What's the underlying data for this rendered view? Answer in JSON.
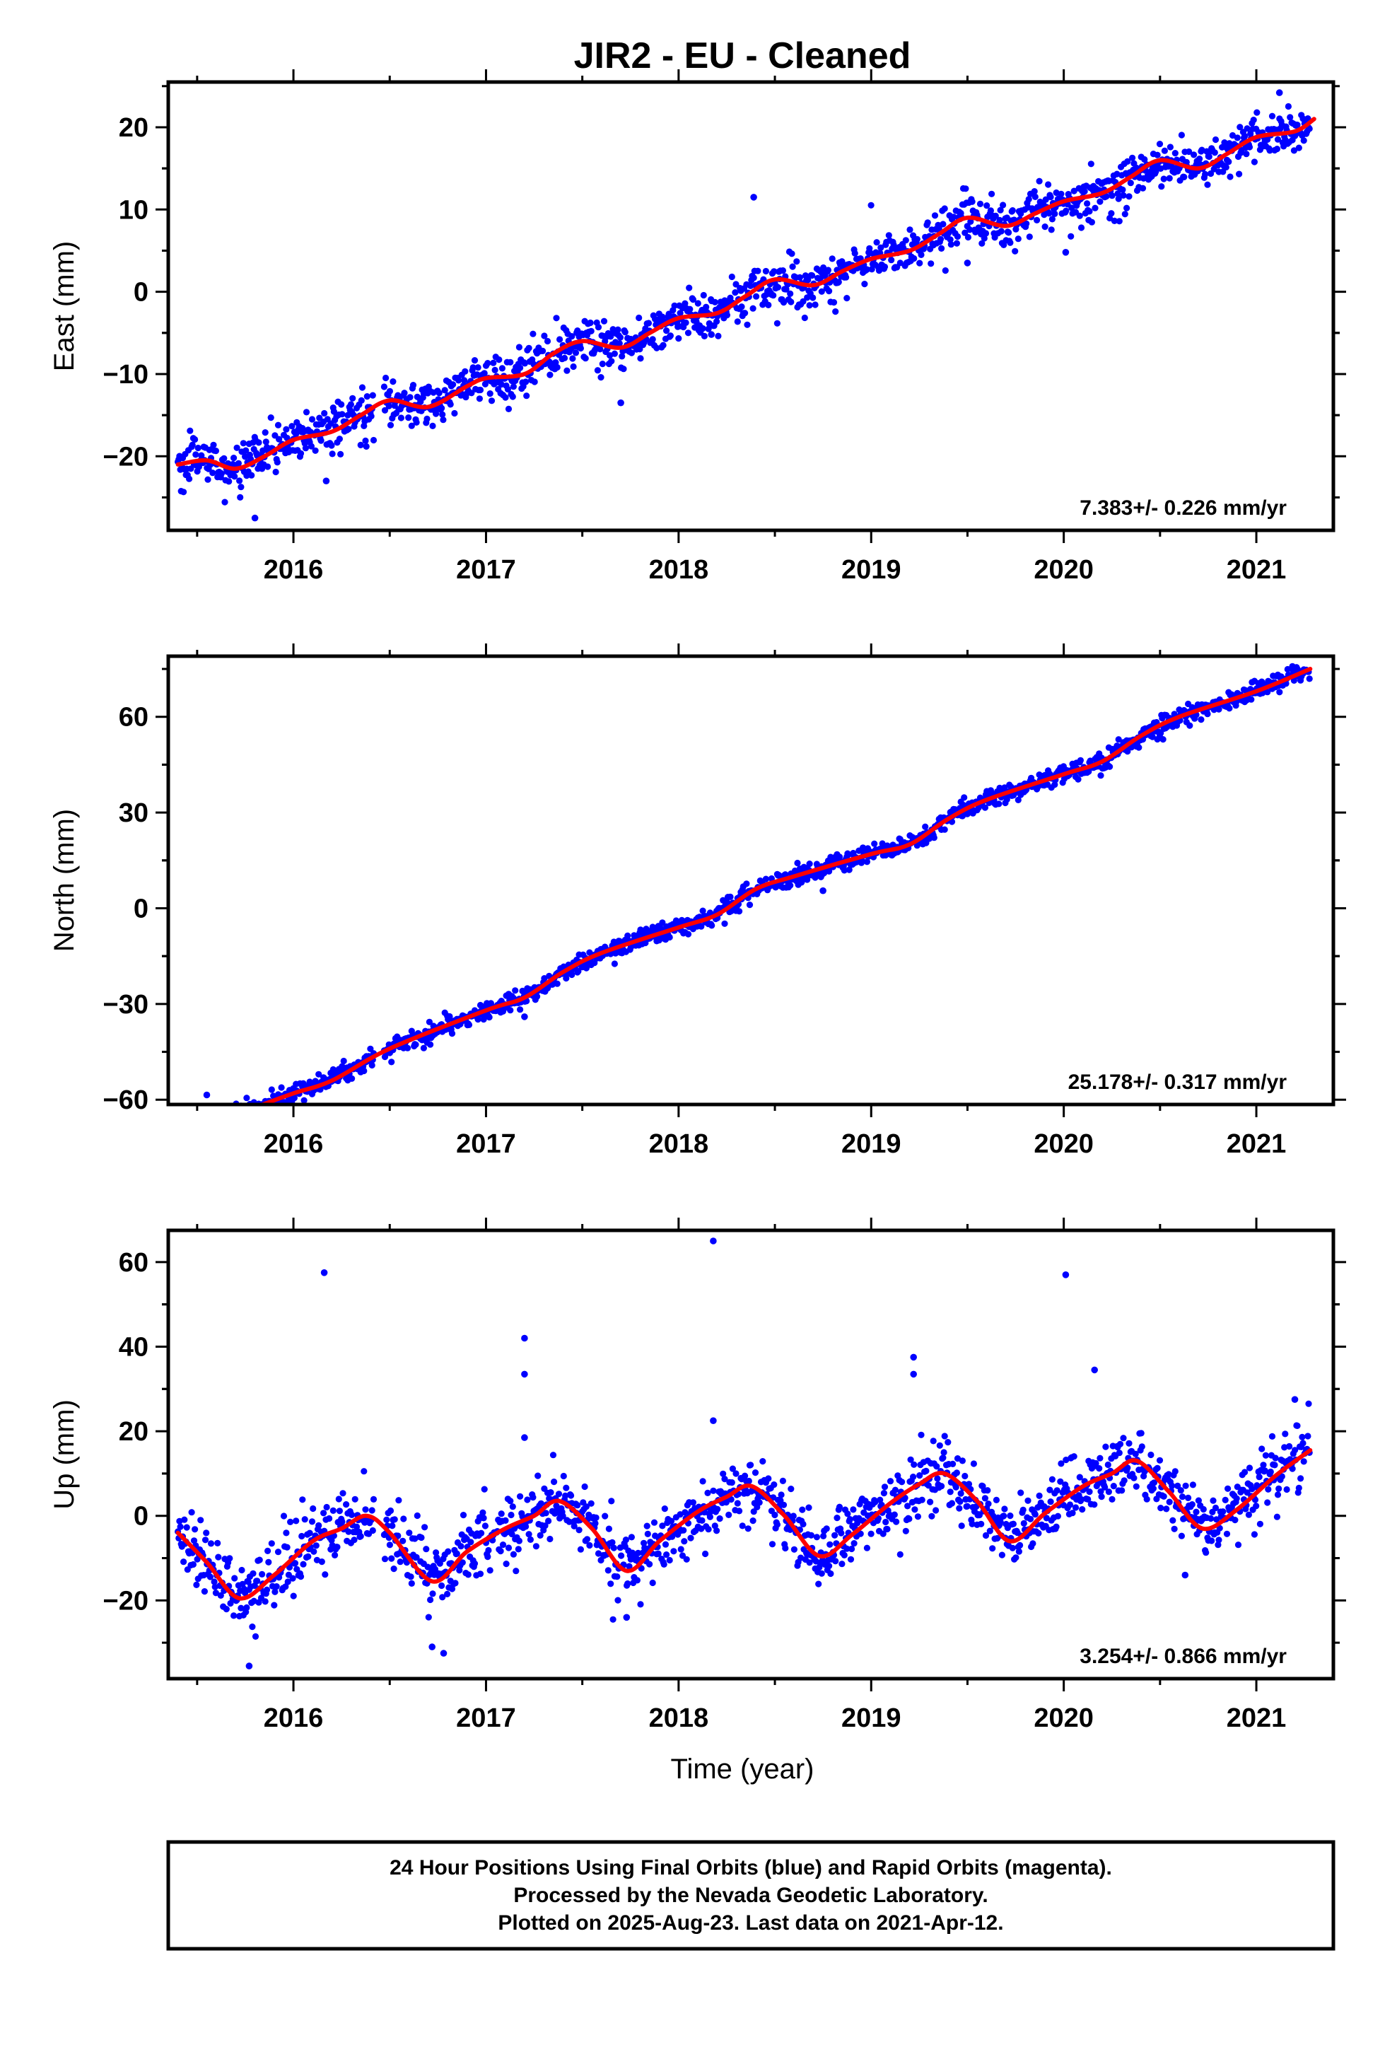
{
  "colors": {
    "observed": "#0000ff",
    "model": "#ff0000",
    "frame": "#000000"
  },
  "chart_data": [
    {
      "type": "scatter",
      "panel": "east",
      "title": "JIR2  - EU - Cleaned",
      "xlabel": "",
      "ylabel": "East (mm)",
      "xlim": [
        2015.35,
        2021.4
      ],
      "ylim": [
        -29,
        25.5
      ],
      "yticks": [
        20,
        10,
        0,
        -10,
        -20
      ],
      "ytick_labels": [
        "20",
        "10",
        "0",
        "−10",
        "−20"
      ],
      "xticks": [
        2016,
        2017,
        2018,
        2019,
        2020,
        2021
      ],
      "xtick_labels": [
        "2016",
        "2017",
        "2018",
        "2019",
        "2020",
        "2021"
      ],
      "grid": false,
      "rate_annotation": "7.383+/- 0.226 mm/yr",
      "model": {
        "x": [
          2015.4,
          2015.55,
          2015.7,
          2015.85,
          2016.0,
          2016.2,
          2016.35,
          2016.5,
          2016.7,
          2016.9,
          2017.0,
          2017.2,
          2017.35,
          2017.5,
          2017.7,
          2017.85,
          2018.0,
          2018.2,
          2018.35,
          2018.5,
          2018.7,
          2018.85,
          2019.0,
          2019.2,
          2019.35,
          2019.5,
          2019.7,
          2019.85,
          2020.0,
          2020.2,
          2020.35,
          2020.5,
          2020.7,
          2020.85,
          2021.0,
          2021.2,
          2021.3
        ],
        "y": [
          -21.0,
          -20.5,
          -21.5,
          -20.0,
          -18.0,
          -17.0,
          -15.0,
          -13.2,
          -14.0,
          -11.5,
          -10.5,
          -10.0,
          -7.5,
          -6.0,
          -6.8,
          -5.0,
          -3.2,
          -2.6,
          -0.5,
          1.5,
          0.8,
          2.5,
          4.0,
          5.0,
          7.0,
          9.0,
          8.0,
          9.5,
          11.0,
          12.0,
          14.0,
          16.0,
          15.0,
          16.8,
          18.8,
          19.5,
          21.0
        ]
      },
      "scatter": {
        "slope_mm_per_yr": 7.383,
        "noise_mm": 1.4,
        "outliers": [
          {
            "x": 2018.39,
            "y": 11.5
          },
          {
            "x": 2016.17,
            "y": -23.0
          },
          {
            "x": 2017.7,
            "y": -13.5
          },
          {
            "x": 2020.01,
            "y": 4.8
          },
          {
            "x": 2015.8,
            "y": -27.5
          },
          {
            "x": 2019.5,
            "y": 3.5
          },
          {
            "x": 2018.17,
            "y": -5.2
          },
          {
            "x": 2021.12,
            "y": 24.2
          }
        ]
      }
    },
    {
      "type": "scatter",
      "panel": "north",
      "title": "",
      "xlabel": "",
      "ylabel": "North (mm)",
      "xlim": [
        2015.35,
        2021.4
      ],
      "ylim": [
        -61.5,
        79
      ],
      "yticks": [
        60,
        30,
        0,
        -30,
        -60
      ],
      "ytick_labels": [
        "60",
        "30",
        "0",
        "−30",
        "−60"
      ],
      "xticks": [
        2016,
        2017,
        2018,
        2019,
        2020,
        2021
      ],
      "xtick_labels": [
        "2016",
        "2017",
        "2018",
        "2019",
        "2020",
        "2021"
      ],
      "grid": false,
      "rate_annotation": "25.178+/- 0.317 mm/yr",
      "model": {
        "x": [
          2015.82,
          2016.0,
          2016.2,
          2016.5,
          2017.0,
          2017.2,
          2017.4,
          2017.6,
          2018.0,
          2018.2,
          2018.4,
          2018.6,
          2019.0,
          2019.2,
          2019.4,
          2019.6,
          2020.0,
          2020.2,
          2020.4,
          2020.6,
          2021.0,
          2021.28
        ],
        "y": [
          -62.0,
          -58.0,
          -54.0,
          -44.0,
          -32.0,
          -28.0,
          -20.0,
          -14.0,
          -6.0,
          -2.0,
          6.0,
          10.0,
          17.0,
          20.0,
          28.0,
          34.0,
          42.0,
          46.0,
          54.0,
          60.0,
          68.0,
          75.0
        ]
      },
      "scatter": {
        "slope_mm_per_yr": 25.178,
        "noise_mm": 1.5,
        "outliers": [
          {
            "x": 2015.55,
            "y": -58.5
          },
          {
            "x": 2017.2,
            "y": -34.0
          },
          {
            "x": 2018.75,
            "y": 5.5
          },
          {
            "x": 2016.0,
            "y": -56.5
          }
        ]
      }
    },
    {
      "type": "scatter",
      "panel": "up",
      "title": "",
      "xlabel": "Time (year)",
      "ylabel": "Up (mm)",
      "xlim": [
        2015.35,
        2021.4
      ],
      "ylim": [
        -38.5,
        67.5
      ],
      "yticks": [
        60,
        40,
        20,
        0,
        -20
      ],
      "ytick_labels": [
        "60",
        "40",
        "20",
        "0",
        "−20"
      ],
      "xticks": [
        2016,
        2017,
        2018,
        2019,
        2020,
        2021
      ],
      "xtick_labels": [
        "2016",
        "2017",
        "2018",
        "2019",
        "2020",
        "2021"
      ],
      "grid": false,
      "rate_annotation": "3.254+/- 0.866 mm/yr",
      "model": {
        "x": [
          2015.4,
          2015.55,
          2015.72,
          2015.9,
          2016.1,
          2016.25,
          2016.38,
          2016.5,
          2016.72,
          2016.9,
          2017.1,
          2017.25,
          2017.38,
          2017.55,
          2017.73,
          2017.9,
          2018.1,
          2018.25,
          2018.38,
          2018.55,
          2018.73,
          2018.9,
          2019.1,
          2019.25,
          2019.38,
          2019.55,
          2019.72,
          2019.9,
          2020.1,
          2020.25,
          2020.38,
          2020.55,
          2020.72,
          2020.9,
          2021.1,
          2021.28
        ],
        "y": [
          -4.0,
          -11.0,
          -19.5,
          -14.0,
          -6.0,
          -3.0,
          0.0,
          -4.0,
          -15.5,
          -8.5,
          -3.0,
          0.0,
          3.5,
          -3.0,
          -13.0,
          -6.0,
          1.0,
          4.5,
          7.0,
          0.0,
          -9.5,
          -4.5,
          3.0,
          7.5,
          10.0,
          3.5,
          -6.0,
          0.5,
          7.0,
          10.0,
          13.0,
          5.5,
          -3.0,
          1.5,
          9.5,
          15.5
        ]
      },
      "scatter": {
        "slope_mm_per_yr": 3.254,
        "noise_mm": 3.8,
        "outliers": [
          {
            "x": 2016.16,
            "y": 57.5
          },
          {
            "x": 2017.2,
            "y": 42.0
          },
          {
            "x": 2017.2,
            "y": 33.5
          },
          {
            "x": 2018.18,
            "y": 65.0
          },
          {
            "x": 2019.22,
            "y": 37.5
          },
          {
            "x": 2019.22,
            "y": 33.5
          },
          {
            "x": 2020.01,
            "y": 57.0
          },
          {
            "x": 2020.16,
            "y": 34.5
          },
          {
            "x": 2016.72,
            "y": -31.0
          },
          {
            "x": 2016.78,
            "y": -32.5
          },
          {
            "x": 2015.77,
            "y": -35.5
          },
          {
            "x": 2017.73,
            "y": -24.0
          },
          {
            "x": 2017.2,
            "y": 18.5
          },
          {
            "x": 2018.18,
            "y": 22.5
          },
          {
            "x": 2021.2,
            "y": 27.5
          },
          {
            "x": 2020.63,
            "y": -14.0
          }
        ]
      }
    }
  ],
  "footer": {
    "line1": "24 Hour Positions Using Final Orbits (blue) and Rapid Orbits (magenta).",
    "line2": "Processed by the Nevada Geodetic Laboratory.",
    "line3": "Plotted on 2025-Aug-23. Last data on 2021-Apr-12."
  }
}
